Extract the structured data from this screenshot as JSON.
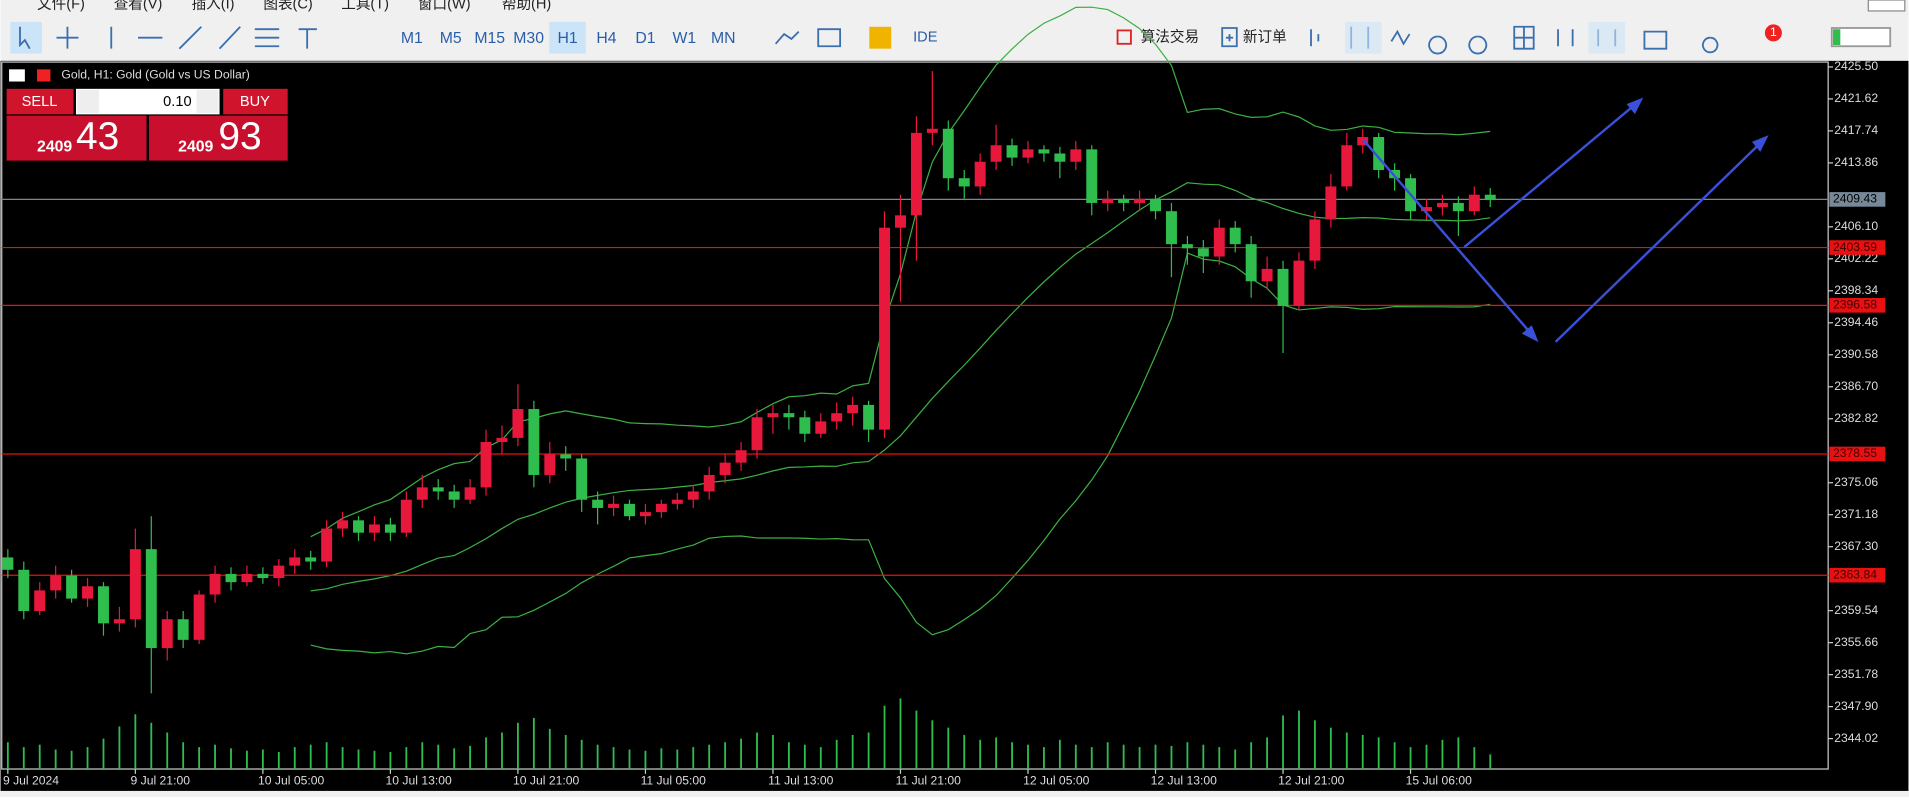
{
  "menu": [
    "文件(F)",
    "查看(V)",
    "插入(I)",
    "图表(C)",
    "工具(T)",
    "窗口(W)",
    "帮助(H)"
  ],
  "toolbar": {
    "timeframes": [
      "M1",
      "M5",
      "M15",
      "M30",
      "H1",
      "H4",
      "D1",
      "W1",
      "MN"
    ],
    "active": "H1",
    "ide": "IDE",
    "algo": "算法交易",
    "new_order": "新订单",
    "badge": "1"
  },
  "trade_panel": {
    "sell": "SELL",
    "buy": "BUY",
    "volume": "0.10",
    "bid_big": "2409",
    "bid_small": "43",
    "ask_big": "2409",
    "ask_small": "93"
  },
  "chart_data": {
    "type": "candlestick",
    "title": "Gold, H1:  Gold (Gold vs US Dollar)",
    "categories": [
      "9 Jul 2024",
      null,
      null,
      null,
      null,
      null,
      null,
      null,
      "9 Jul 21:00",
      null,
      null,
      null,
      null,
      null,
      null,
      null,
      "10 Jul 05:00",
      null,
      null,
      null,
      null,
      null,
      null,
      null,
      "10 Jul 13:00",
      null,
      null,
      null,
      null,
      null,
      null,
      null,
      "10 Jul 21:00",
      null,
      null,
      null,
      null,
      null,
      null,
      null,
      "11 Jul 05:00",
      null,
      null,
      null,
      null,
      null,
      null,
      null,
      "11 Jul 13:00",
      null,
      null,
      null,
      null,
      null,
      null,
      null,
      "11 Jul 21:00",
      null,
      null,
      null,
      null,
      null,
      null,
      null,
      "12 Jul 05:00",
      null,
      null,
      null,
      null,
      null,
      null,
      null,
      "12 Jul 13:00",
      null,
      null,
      null,
      null,
      null,
      null,
      null,
      "12 Jul 21:00",
      null,
      null,
      null,
      null,
      null,
      null,
      null,
      "15 Jul 06:00",
      null,
      null,
      null,
      null,
      null
    ],
    "open": [
      2366.0,
      2364.5,
      2359.5,
      2362.0,
      2363.8,
      2361.0,
      2362.5,
      2358.0,
      2358.5,
      2367.0,
      2355.0,
      2358.5,
      2356.0,
      2361.5,
      2364.0,
      2363.0,
      2364.0,
      2363.5,
      2365.0,
      2366.0,
      2365.5,
      2369.5,
      2370.5,
      2369.0,
      2370.0,
      2369.0,
      2373.0,
      2374.5,
      2374.0,
      2373.0,
      2374.5,
      2380.0,
      2380.5,
      2384.0,
      2376.0,
      2378.5,
      2378.0,
      2373.0,
      2372.0,
      2372.5,
      2371.0,
      2371.5,
      2372.5,
      2373.0,
      2374.0,
      2376.0,
      2377.5,
      2379.0,
      2383.0,
      2383.5,
      2383.0,
      2381.0,
      2382.5,
      2383.5,
      2384.5,
      2381.5,
      2406.0,
      2407.5,
      2417.5,
      2418.0,
      2412.0,
      2411.0,
      2414.0,
      2416.0,
      2414.5,
      2415.5,
      2415.0,
      2414.0,
      2415.5,
      2409.0,
      2409.5,
      2409.0,
      2409.5,
      2408.0,
      2404.0,
      2403.5,
      2402.5,
      2406.0,
      2404.0,
      2399.5,
      2401.0,
      2396.5,
      2402.0,
      2407.0,
      2411.0,
      2416.0,
      2417.0,
      2413.0,
      2412.0,
      2408.0,
      2408.5,
      2409.0,
      2408.0,
      2410.0
    ],
    "high": [
      2367.0,
      2365.5,
      2363.0,
      2365.0,
      2364.5,
      2363.5,
      2363.0,
      2360.0,
      2369.5,
      2371.0,
      2359.5,
      2359.5,
      2362.0,
      2365.0,
      2364.8,
      2365.0,
      2364.8,
      2365.8,
      2367.0,
      2366.8,
      2370.5,
      2371.5,
      2371.0,
      2371.0,
      2370.8,
      2374.0,
      2376.0,
      2375.5,
      2374.8,
      2375.5,
      2381.5,
      2382.0,
      2387.0,
      2385.0,
      2380.0,
      2379.5,
      2378.5,
      2374.0,
      2373.5,
      2373.0,
      2372.5,
      2373.0,
      2373.8,
      2374.8,
      2377.0,
      2378.5,
      2380.0,
      2384.0,
      2384.5,
      2384.5,
      2383.8,
      2383.5,
      2384.8,
      2385.5,
      2385.0,
      2408.0,
      2410.0,
      2419.5,
      2425.0,
      2419.0,
      2413.0,
      2415.0,
      2418.5,
      2416.8,
      2416.5,
      2416.0,
      2415.8,
      2416.5,
      2416.0,
      2410.5,
      2410.0,
      2410.5,
      2410.0,
      2409.0,
      2405.0,
      2404.5,
      2407.0,
      2406.8,
      2405.0,
      2402.5,
      2402.0,
      2403.0,
      2408.0,
      2412.5,
      2417.5,
      2418.0,
      2417.5,
      2413.8,
      2412.5,
      2409.5,
      2410.0,
      2409.8,
      2411.0,
      2410.8
    ],
    "low": [
      2363.5,
      2358.5,
      2359.0,
      2361.0,
      2360.5,
      2360.0,
      2356.5,
      2357.0,
      2357.5,
      2349.5,
      2353.5,
      2355.0,
      2355.5,
      2360.5,
      2362.0,
      2362.5,
      2362.8,
      2362.5,
      2364.0,
      2364.5,
      2364.8,
      2368.5,
      2368.0,
      2368.0,
      2368.0,
      2368.5,
      2372.0,
      2373.0,
      2372.0,
      2372.5,
      2373.5,
      2378.5,
      2379.5,
      2374.5,
      2375.0,
      2376.5,
      2371.5,
      2370.0,
      2371.0,
      2370.5,
      2370.0,
      2370.8,
      2371.8,
      2372.0,
      2373.0,
      2375.0,
      2376.5,
      2378.0,
      2381.0,
      2381.5,
      2380.0,
      2380.5,
      2381.5,
      2382.0,
      2380.0,
      2380.5,
      2397.0,
      2402.0,
      2416.0,
      2410.5,
      2409.5,
      2410.0,
      2413.0,
      2413.5,
      2413.8,
      2414.0,
      2412.0,
      2413.0,
      2407.5,
      2408.0,
      2408.0,
      2408.0,
      2407.0,
      2400.0,
      2401.5,
      2400.5,
      2401.5,
      2403.0,
      2397.5,
      2398.5,
      2390.8,
      2396.0,
      2401.0,
      2406.0,
      2410.5,
      2415.0,
      2412.0,
      2410.5,
      2407.0,
      2407.0,
      2407.5,
      2405.0,
      2407.5,
      2408.5
    ],
    "close": [
      2364.5,
      2359.5,
      2362.0,
      2363.8,
      2361.0,
      2362.5,
      2358.0,
      2358.5,
      2367.0,
      2355.0,
      2358.5,
      2356.0,
      2361.5,
      2364.0,
      2363.0,
      2364.0,
      2363.5,
      2365.0,
      2366.0,
      2365.5,
      2369.5,
      2370.5,
      2369.0,
      2370.0,
      2369.0,
      2373.0,
      2374.5,
      2374.0,
      2373.0,
      2374.5,
      2380.0,
      2380.5,
      2384.0,
      2376.0,
      2378.5,
      2378.0,
      2373.0,
      2372.0,
      2372.5,
      2371.0,
      2371.5,
      2372.5,
      2373.0,
      2374.0,
      2376.0,
      2377.5,
      2379.0,
      2383.0,
      2383.5,
      2383.0,
      2381.0,
      2382.5,
      2383.5,
      2384.5,
      2381.5,
      2406.0,
      2407.5,
      2417.5,
      2418.0,
      2412.0,
      2411.0,
      2414.0,
      2416.0,
      2414.5,
      2415.5,
      2415.0,
      2414.0,
      2415.5,
      2409.0,
      2409.5,
      2409.0,
      2409.5,
      2408.0,
      2404.0,
      2403.5,
      2402.5,
      2406.0,
      2404.0,
      2399.5,
      2401.0,
      2396.5,
      2402.0,
      2407.0,
      2411.0,
      2416.0,
      2417.0,
      2413.0,
      2412.0,
      2408.0,
      2408.5,
      2409.0,
      2408.0,
      2410.0,
      2409.43
    ],
    "volumes": [
      22,
      18,
      20,
      16,
      15,
      18,
      25,
      35,
      45,
      38,
      30,
      22,
      18,
      20,
      17,
      15,
      16,
      14,
      18,
      20,
      22,
      18,
      16,
      15,
      14,
      18,
      22,
      20,
      17,
      19,
      26,
      30,
      38,
      42,
      33,
      28,
      24,
      20,
      18,
      16,
      15,
      17,
      16,
      18,
      20,
      22,
      25,
      30,
      28,
      22,
      20,
      18,
      24,
      28,
      30,
      52,
      58,
      48,
      40,
      34,
      28,
      24,
      26,
      22,
      20,
      18,
      24,
      20,
      18,
      22,
      20,
      18,
      20,
      19,
      22,
      20,
      18,
      16,
      22,
      26,
      44,
      48,
      40,
      34,
      30,
      28,
      26,
      22,
      18,
      20,
      24,
      26,
      18,
      12
    ],
    "up_color": "#e8173c",
    "down_color": "#2fbd4e",
    "volume_color": "#2fbd4e",
    "band_color": "#3cb043",
    "level_color": "#e81010",
    "ylim": [
      2340.33,
      2426.24
    ],
    "yticks": [
      {
        "value": 2425.5,
        "label": "2425.50"
      },
      2421.62,
      2417.74,
      2413.86,
      {
        "value": 2406.1,
        "label": "2406.10"
      },
      2402.22,
      2398.34,
      2394.46,
      2390.58,
      {
        "value": 2386.7,
        "label": "2386.70"
      },
      2382.82,
      2375.06,
      2371.18,
      {
        "value": 2367.3,
        "label": "2367.30"
      },
      2359.54,
      2355.66,
      2351.78,
      {
        "value": 2347.9,
        "label": "2347.90"
      },
      2344.02
    ],
    "current_price": 2409.43,
    "levels": [
      2403.59,
      2396.58,
      2378.55,
      2363.84
    ]
  }
}
